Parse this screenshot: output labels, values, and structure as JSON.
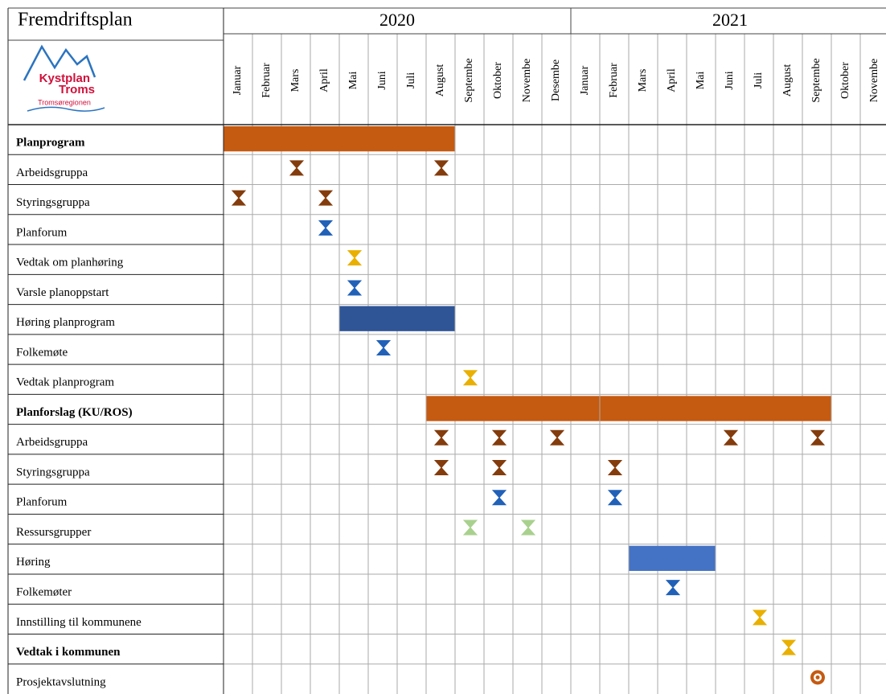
{
  "header": {
    "title": "Fremdriftsplan",
    "logo": {
      "lines": [
        "Kystplan",
        "Troms"
      ],
      "tagline": "Tromsøregionen"
    },
    "years": [
      {
        "label": "2020",
        "span": 12
      },
      {
        "label": "2021",
        "span": 11
      }
    ],
    "months": [
      "Januar",
      "Februar",
      "Mars",
      "April",
      "Mai",
      "Juni",
      "Juli",
      "August",
      "Septembe",
      "Oktober",
      "Novembe",
      "Desembe",
      "Januar",
      "Februar",
      "Mars",
      "April",
      "Mai",
      "Juni",
      "Juli",
      "August",
      "Septembe",
      "Oktober",
      "Novembe"
    ]
  },
  "rows": [
    {
      "label": "Planprogram",
      "bold": true,
      "bars": [
        {
          "start": 0,
          "end": 7,
          "color": "#c55a11"
        }
      ],
      "milestones": []
    },
    {
      "label": "Arbeidsgruppa",
      "bold": false,
      "bars": [],
      "milestones": [
        {
          "month": 2,
          "color": "#843c0c",
          "kind": "hourglass"
        },
        {
          "month": 7,
          "color": "#843c0c",
          "kind": "hourglass"
        }
      ]
    },
    {
      "label": "Styringsgruppa",
      "bold": false,
      "bars": [],
      "milestones": [
        {
          "month": 0,
          "color": "#843c0c",
          "kind": "hourglass"
        },
        {
          "month": 3,
          "color": "#843c0c",
          "kind": "hourglass"
        }
      ]
    },
    {
      "label": "Planforum",
      "bold": false,
      "bars": [],
      "milestones": [
        {
          "month": 3,
          "color": "#2161b8",
          "kind": "hourglass"
        }
      ]
    },
    {
      "label": "Vedtak om planhøring",
      "bold": false,
      "bars": [],
      "milestones": [
        {
          "month": 4,
          "color": "#e9b000",
          "kind": "hourglass"
        }
      ]
    },
    {
      "label": "Varsle planoppstart",
      "bold": false,
      "bars": [],
      "milestones": [
        {
          "month": 4,
          "color": "#2161b8",
          "kind": "hourglass"
        }
      ]
    },
    {
      "label": "Høring planprogram",
      "bold": false,
      "bars": [
        {
          "start": 4,
          "end": 7,
          "color": "#2f5597"
        }
      ],
      "milestones": []
    },
    {
      "label": "Folkemøte",
      "bold": false,
      "bars": [],
      "milestones": [
        {
          "month": 5,
          "color": "#2161b8",
          "kind": "hourglass"
        }
      ]
    },
    {
      "label": "Vedtak planprogram",
      "bold": false,
      "bars": [],
      "milestones": [
        {
          "month": 8,
          "color": "#e9b000",
          "kind": "hourglass"
        }
      ]
    },
    {
      "label": "Planforslag (KU/ROS)",
      "bold": true,
      "bars": [
        {
          "start": 7,
          "end": 12,
          "color": "#c55a11"
        },
        {
          "start": 13,
          "end": 20,
          "color": "#c55a11"
        }
      ],
      "milestones": []
    },
    {
      "label": "Arbeidsgruppa",
      "bold": false,
      "bars": [],
      "milestones": [
        {
          "month": 7,
          "color": "#843c0c",
          "kind": "hourglass"
        },
        {
          "month": 9,
          "color": "#843c0c",
          "kind": "hourglass"
        },
        {
          "month": 11,
          "color": "#843c0c",
          "kind": "hourglass"
        },
        {
          "month": 17,
          "color": "#843c0c",
          "kind": "hourglass"
        },
        {
          "month": 20,
          "color": "#843c0c",
          "kind": "hourglass"
        }
      ]
    },
    {
      "label": "Styringsgruppa",
      "bold": false,
      "bars": [],
      "milestones": [
        {
          "month": 7,
          "color": "#843c0c",
          "kind": "hourglass"
        },
        {
          "month": 9,
          "color": "#843c0c",
          "kind": "hourglass"
        },
        {
          "month": 13,
          "color": "#843c0c",
          "kind": "hourglass"
        }
      ]
    },
    {
      "label": "Planforum",
      "bold": false,
      "bars": [],
      "milestones": [
        {
          "month": 9,
          "color": "#2161b8",
          "kind": "hourglass"
        },
        {
          "month": 13,
          "color": "#2161b8",
          "kind": "hourglass"
        }
      ]
    },
    {
      "label": "Ressursgrupper",
      "bold": false,
      "bars": [],
      "milestones": [
        {
          "month": 8,
          "color": "#a9d18e",
          "kind": "hourglass"
        },
        {
          "month": 10,
          "color": "#a9d18e",
          "kind": "hourglass"
        }
      ]
    },
    {
      "label": "Høring",
      "bold": false,
      "bars": [
        {
          "start": 14,
          "end": 16,
          "color": "#4472c4"
        }
      ],
      "milestones": []
    },
    {
      "label": "Folkemøter",
      "bold": false,
      "bars": [],
      "milestones": [
        {
          "month": 15,
          "color": "#2161b8",
          "kind": "hourglass"
        }
      ]
    },
    {
      "label": "Innstilling til kommunene",
      "bold": false,
      "bars": [],
      "milestones": [
        {
          "month": 18,
          "color": "#e9b000",
          "kind": "hourglass"
        }
      ]
    },
    {
      "label": "Vedtak i kommunen",
      "bold": true,
      "bars": [],
      "milestones": [
        {
          "month": 19,
          "color": "#e9b000",
          "kind": "hourglass"
        }
      ]
    },
    {
      "label": "Prosjektavslutning",
      "bold": false,
      "bars": [],
      "milestones": [
        {
          "month": 20,
          "color": "#c55a11",
          "kind": "target"
        }
      ]
    }
  ]
}
